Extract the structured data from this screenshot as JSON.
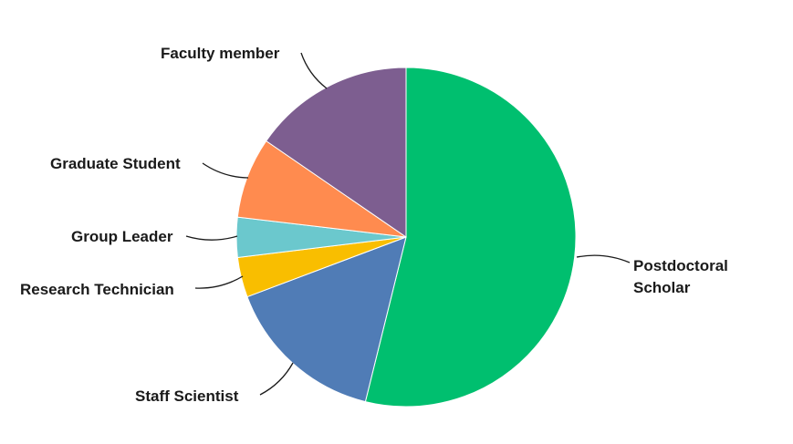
{
  "chart_data": {
    "type": "pie",
    "title": "",
    "start_angle_deg": 0,
    "direction": "clockwise",
    "slices": [
      {
        "label": "Postdoctoral Scholar",
        "label_lines": [
          "Postdoctoral",
          "Scholar"
        ],
        "value": 53.8,
        "color": "#00BF6F"
      },
      {
        "label": "Staff Scientist",
        "label_lines": [
          "Staff Scientist"
        ],
        "value": 15.4,
        "color": "#507CB6"
      },
      {
        "label": "Research Technician",
        "label_lines": [
          "Research Technician"
        ],
        "value": 3.8,
        "color": "#F9BE00"
      },
      {
        "label": "Group Leader",
        "label_lines": [
          "Group Leader"
        ],
        "value": 3.8,
        "color": "#6BC8CD"
      },
      {
        "label": "Graduate Student",
        "label_lines": [
          "Graduate Student"
        ],
        "value": 7.7,
        "color": "#FF8B4F"
      },
      {
        "label": "Faculty member",
        "label_lines": [
          "Faculty member"
        ],
        "value": 15.4,
        "color": "#7D5E90"
      }
    ]
  }
}
